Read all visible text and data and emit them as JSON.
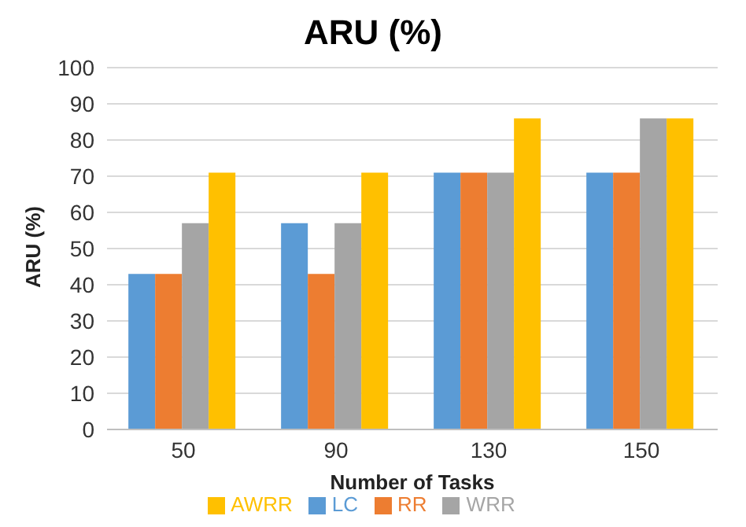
{
  "chart_data": {
    "type": "bar",
    "title": "ARU (%)",
    "xlabel": "Number of Tasks",
    "ylabel": "ARU (%)",
    "categories": [
      "50",
      "90",
      "130",
      "150"
    ],
    "series": [
      {
        "name": "LC",
        "color": "#5b9bd5",
        "values": [
          43,
          57,
          71,
          71
        ]
      },
      {
        "name": "RR",
        "color": "#ed7d31",
        "values": [
          43,
          43,
          71,
          71
        ]
      },
      {
        "name": "WRR",
        "color": "#a5a5a5",
        "values": [
          57,
          57,
          71,
          86
        ]
      },
      {
        "name": "AWRR",
        "color": "#ffc000",
        "values": [
          71,
          71,
          86,
          86
        ]
      }
    ],
    "ylim": [
      0,
      100
    ],
    "yticks": [
      0,
      10,
      20,
      30,
      40,
      50,
      60,
      70,
      80,
      90,
      100
    ],
    "grid": "y",
    "legend": "bottom"
  }
}
